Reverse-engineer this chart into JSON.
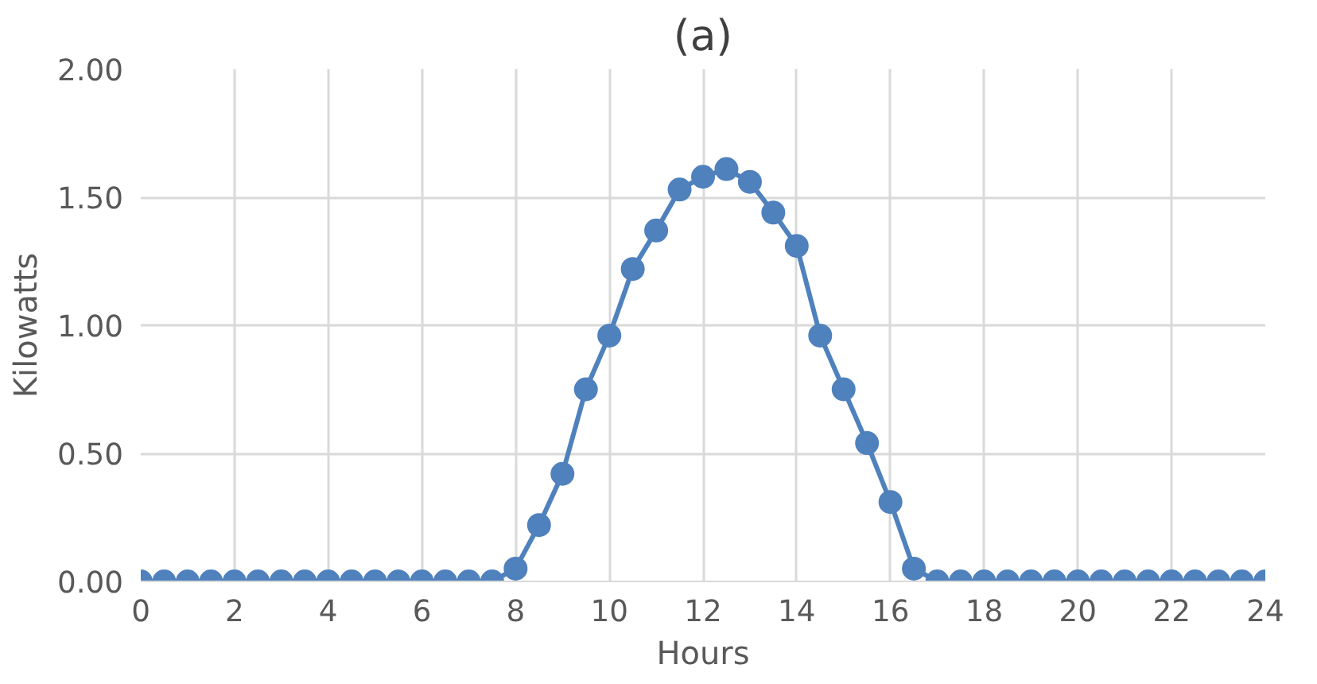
{
  "chart_data": {
    "type": "line",
    "title": "(a)",
    "xlabel": "Hours",
    "ylabel": "Kilowatts",
    "x": [
      0,
      0.5,
      1,
      1.5,
      2,
      2.5,
      3,
      3.5,
      4,
      4.5,
      5,
      5.5,
      6,
      6.5,
      7,
      7.5,
      8,
      8.5,
      9,
      9.5,
      10,
      10.5,
      11,
      11.5,
      12,
      12.5,
      13,
      13.5,
      14,
      14.5,
      15,
      15.5,
      16,
      16.5,
      17,
      17.5,
      18,
      18.5,
      19,
      19.5,
      20,
      20.5,
      21,
      21.5,
      22,
      22.5,
      23,
      23.5,
      24
    ],
    "series": [
      {
        "color": "#4f81bd",
        "values": [
          0,
          0,
          0,
          0,
          0,
          0,
          0,
          0,
          0,
          0,
          0,
          0,
          0,
          0,
          0,
          0,
          0.05,
          0.22,
          0.42,
          0.75,
          0.96,
          1.22,
          1.37,
          1.53,
          1.58,
          1.61,
          1.56,
          1.44,
          1.31,
          0.96,
          0.75,
          0.54,
          0.31,
          0.05,
          0,
          0,
          0,
          0,
          0,
          0,
          0,
          0,
          0,
          0,
          0,
          0,
          0,
          0,
          0
        ]
      }
    ],
    "xlim": [
      0,
      24
    ],
    "xticks": [
      0,
      2,
      4,
      6,
      8,
      10,
      12,
      14,
      16,
      18,
      20,
      22,
      24
    ],
    "ylim": [
      0,
      2
    ],
    "yticks": [
      {
        "value": 0,
        "label": "0.00"
      },
      {
        "value": 0.5,
        "label": "0.50"
      },
      {
        "value": 1,
        "label": "1.00"
      },
      {
        "value": 1.5,
        "label": "1.50"
      },
      {
        "value": 2,
        "label": "2.00"
      }
    ],
    "grid": true,
    "marker": "circle",
    "line_style": "solid"
  }
}
